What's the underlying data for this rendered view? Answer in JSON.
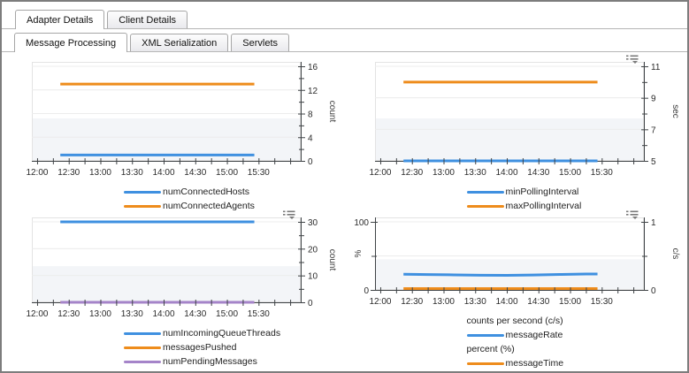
{
  "tabs": {
    "row1": [
      {
        "label": "Adapter Details",
        "active": true
      },
      {
        "label": "Client Details",
        "active": false
      }
    ],
    "row2": [
      {
        "label": "Message Processing",
        "active": true
      },
      {
        "label": "XML Serialization",
        "active": false
      },
      {
        "label": "Servlets",
        "active": false
      }
    ]
  },
  "colors": {
    "blue": "#3f90e0",
    "orange": "#ee8c1c",
    "purple": "#a584c9",
    "axis": "#3f4346",
    "grid": "#ececec",
    "band": "#f3f5f8",
    "plot_outline": "#e3e3e3"
  },
  "x_axis": {
    "labels": [
      "12:00",
      "12:30",
      "13:00",
      "13:30",
      "14:00",
      "14:30",
      "15:00",
      "15:30"
    ],
    "domain_min": 715,
    "domain_max": 970,
    "minor_start": 720,
    "minor_step": 15,
    "minor_end": 960,
    "label_start": 720,
    "label_step": 30
  },
  "chart_data": [
    {
      "id": "connected-hosts-agents",
      "type": "line",
      "menu_icon": false,
      "y_right": {
        "label": "count",
        "min": 0,
        "max": 16,
        "majors": [
          0,
          4,
          8,
          12,
          16
        ],
        "minors": [
          2,
          6,
          10,
          14
        ]
      },
      "series": [
        {
          "name": "numConnectedHosts",
          "color": "blue",
          "axis": "right",
          "x": [
            742,
            926
          ],
          "y": [
            1,
            1
          ]
        },
        {
          "name": "numConnectedAgents",
          "color": "orange",
          "axis": "right",
          "x": [
            742,
            926
          ],
          "y": [
            13,
            13
          ]
        }
      ],
      "legend": [
        {
          "swatch": "blue",
          "label": "numConnectedHosts"
        },
        {
          "swatch": "orange",
          "label": "numConnectedAgents"
        }
      ]
    },
    {
      "id": "polling-interval",
      "type": "line",
      "menu_icon": true,
      "y_right": {
        "label": "sec",
        "min": 5,
        "max": 11,
        "majors": [
          5,
          7,
          9,
          11
        ],
        "minors": [
          6,
          8,
          10
        ]
      },
      "series": [
        {
          "name": "minPollingInterval",
          "color": "blue",
          "axis": "right",
          "x": [
            742,
            926
          ],
          "y": [
            5,
            5
          ]
        },
        {
          "name": "maxPollingInterval",
          "color": "orange",
          "axis": "right",
          "x": [
            742,
            926
          ],
          "y": [
            10,
            10
          ]
        }
      ],
      "legend": [
        {
          "swatch": "blue",
          "label": "minPollingInterval"
        },
        {
          "swatch": "orange",
          "label": "maxPollingInterval"
        }
      ]
    },
    {
      "id": "queue-threads-messages",
      "type": "line",
      "menu_icon": true,
      "y_right": {
        "label": "count",
        "min": 0,
        "max": 30,
        "majors": [
          0,
          10,
          20,
          30
        ],
        "minors": [
          5,
          15,
          25
        ]
      },
      "series": [
        {
          "name": "numIncomingQueueThreads",
          "color": "blue",
          "axis": "right",
          "x": [
            742,
            926
          ],
          "y": [
            30,
            30
          ]
        },
        {
          "name": "messagesPushed",
          "color": "orange",
          "axis": "right",
          "x": [
            742,
            926
          ],
          "y": [
            0,
            0
          ]
        },
        {
          "name": "numPendingMessages",
          "color": "purple",
          "axis": "right",
          "x": [
            742,
            926
          ],
          "y": [
            0,
            0
          ]
        }
      ],
      "legend": [
        {
          "swatch": "blue",
          "label": "numIncomingQueueThreads"
        },
        {
          "swatch": "orange",
          "label": "messagesPushed"
        },
        {
          "swatch": "purple",
          "label": "numPendingMessages"
        }
      ]
    },
    {
      "id": "message-rate-time",
      "type": "line",
      "menu_icon": true,
      "y_left": {
        "label": "%",
        "min": 0,
        "max": 100,
        "majors": [
          0,
          100
        ],
        "minors": [
          50
        ]
      },
      "y_right": {
        "label": "c/s",
        "min": 0,
        "max": 1,
        "majors": [
          0,
          1
        ],
        "minors": [
          0.5
        ]
      },
      "series": [
        {
          "name": "messageRate",
          "color": "blue",
          "axis": "right",
          "x": [
            742,
            765,
            790,
            815,
            840,
            865,
            890,
            915,
            926
          ],
          "y": [
            0.23,
            0.226,
            0.221,
            0.216,
            0.215,
            0.219,
            0.227,
            0.233,
            0.233
          ]
        },
        {
          "name": "messageTime",
          "color": "orange",
          "axis": "left",
          "x": [
            742,
            926
          ],
          "y": [
            2,
            2
          ]
        }
      ],
      "legend": [
        {
          "group": "counts per second (c/s)"
        },
        {
          "swatch": "blue",
          "label": "messageRate"
        },
        {
          "group": "percent (%)"
        },
        {
          "swatch": "orange",
          "label": "messageTime"
        }
      ]
    }
  ]
}
